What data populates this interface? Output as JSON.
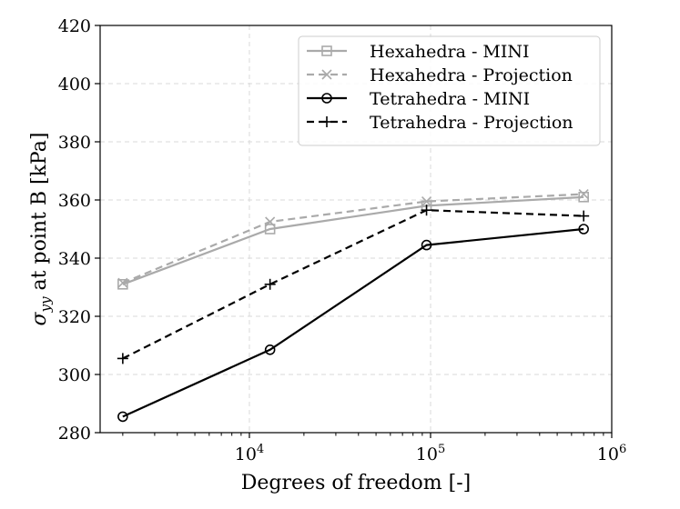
{
  "chart_data": {
    "type": "line",
    "xscale": "log",
    "xlabel": "Degrees of freedom [-]",
    "ylabel_symbol": "σ",
    "ylabel_subscript": "yy",
    "ylabel_rest": " at point B [kPa]",
    "xlim": [
      1500,
      1000000
    ],
    "ylim": [
      280,
      420
    ],
    "yticks": [
      280,
      300,
      320,
      340,
      360,
      380,
      400,
      420
    ],
    "xticks": [
      {
        "value": 10000,
        "base": "10",
        "exp": "4"
      },
      {
        "value": 100000,
        "base": "10",
        "exp": "5"
      },
      {
        "value": 1000000,
        "base": "10",
        "exp": "6"
      }
    ],
    "grid": true,
    "legend_position": "top-right",
    "series": [
      {
        "name": "Hexahedra - MINI",
        "color": "#aaaaaa",
        "dash": "solid",
        "marker": "square",
        "x": [
          2000,
          13000,
          95000,
          700000
        ],
        "values": [
          331,
          350,
          358,
          361
        ]
      },
      {
        "name": "Hexahedra - Projection",
        "color": "#aaaaaa",
        "dash": "dashed",
        "marker": "x",
        "x": [
          2000,
          13000,
          95000,
          700000
        ],
        "values": [
          331.5,
          352.5,
          359.5,
          362
        ]
      },
      {
        "name": "Tetrahedra - MINI",
        "color": "#000000",
        "dash": "solid",
        "marker": "circle",
        "x": [
          2000,
          13000,
          95000,
          700000
        ],
        "values": [
          285.5,
          308.5,
          344.5,
          350
        ]
      },
      {
        "name": "Tetrahedra - Projection",
        "color": "#000000",
        "dash": "dashed",
        "marker": "plus",
        "x": [
          2000,
          13000,
          95000,
          700000
        ],
        "values": [
          305.5,
          331,
          356.5,
          354.5
        ]
      }
    ]
  }
}
